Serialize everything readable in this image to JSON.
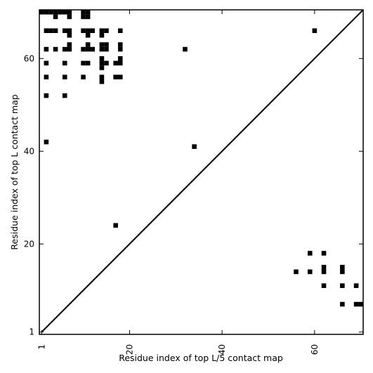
{
  "chart_data": {
    "type": "scatter",
    "title": "",
    "xlabel": "Residue index of top L/5 contact map",
    "ylabel": "Residue index of top L contact map",
    "xlim": [
      0.5,
      70.5
    ],
    "ylim": [
      0.5,
      70.5
    ],
    "x_ticks": [
      1,
      20,
      40,
      60
    ],
    "y_ticks": [
      1,
      20,
      40,
      60
    ],
    "x_tick_labels": [
      "1",
      "20",
      "40",
      "60"
    ],
    "y_tick_labels": [
      "1",
      "20",
      "40",
      "60"
    ],
    "grid": false,
    "legend": "none",
    "diagonal_line": true,
    "marker": "square",
    "colors": {
      "marker": "#000000",
      "background": "#ffffff",
      "axes": "#000000"
    },
    "series": [
      {
        "points": [
          [
            1,
            70
          ],
          [
            2,
            70
          ],
          [
            3,
            70
          ],
          [
            4,
            70
          ],
          [
            5,
            70
          ],
          [
            6,
            70
          ],
          [
            7,
            70
          ],
          [
            10,
            70
          ],
          [
            11,
            70
          ],
          [
            4,
            69
          ],
          [
            7,
            69
          ],
          [
            10,
            69
          ],
          [
            11,
            69
          ],
          [
            2,
            66
          ],
          [
            3,
            66
          ],
          [
            4,
            66
          ],
          [
            6,
            66
          ],
          [
            7,
            66
          ],
          [
            10,
            66
          ],
          [
            11,
            66
          ],
          [
            12,
            66
          ],
          [
            14,
            66
          ],
          [
            15,
            66
          ],
          [
            18,
            66
          ],
          [
            60,
            66
          ],
          [
            7,
            65
          ],
          [
            11,
            65
          ],
          [
            14,
            65
          ],
          [
            7,
            63
          ],
          [
            11,
            63
          ],
          [
            14,
            63
          ],
          [
            15,
            63
          ],
          [
            18,
            63
          ],
          [
            2,
            62
          ],
          [
            4,
            62
          ],
          [
            6,
            62
          ],
          [
            7,
            62
          ],
          [
            10,
            62
          ],
          [
            11,
            62
          ],
          [
            12,
            62
          ],
          [
            14,
            62
          ],
          [
            15,
            62
          ],
          [
            18,
            62
          ],
          [
            32,
            62
          ],
          [
            14,
            60
          ],
          [
            18,
            60
          ],
          [
            2,
            59
          ],
          [
            6,
            59
          ],
          [
            10,
            59
          ],
          [
            11,
            59
          ],
          [
            14,
            59
          ],
          [
            15,
            59
          ],
          [
            17,
            59
          ],
          [
            18,
            59
          ],
          [
            14,
            58
          ],
          [
            2,
            56
          ],
          [
            6,
            56
          ],
          [
            10,
            56
          ],
          [
            14,
            56
          ],
          [
            17,
            56
          ],
          [
            18,
            56
          ],
          [
            14,
            55
          ],
          [
            2,
            52
          ],
          [
            6,
            52
          ],
          [
            2,
            42
          ],
          [
            34,
            41
          ],
          [
            17,
            24
          ],
          [
            59,
            18
          ],
          [
            62,
            18
          ],
          [
            62,
            15
          ],
          [
            66,
            15
          ],
          [
            56,
            14
          ],
          [
            59,
            14
          ],
          [
            62,
            14
          ],
          [
            66,
            14
          ],
          [
            62,
            11
          ],
          [
            66,
            11
          ],
          [
            69,
            11
          ],
          [
            66,
            7
          ],
          [
            69,
            7
          ],
          [
            70,
            7
          ]
        ]
      }
    ]
  }
}
